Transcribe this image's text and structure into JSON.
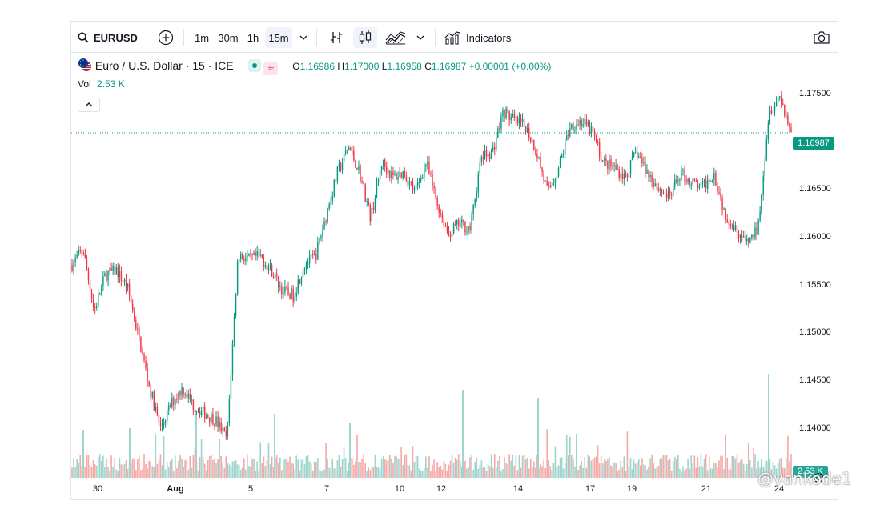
{
  "toolbar": {
    "symbol": "EURUSD",
    "intervals": [
      "1m",
      "30m",
      "1h",
      "15m"
    ],
    "active_interval": "15m",
    "indicators_label": "Indicators"
  },
  "legend": {
    "title": "Euro / U.S. Dollar · 15 · ICE",
    "open_label": "O",
    "open": "1.16986",
    "high_label": "H",
    "high": "1.17000",
    "low_label": "L",
    "low": "1.16958",
    "close_label": "C",
    "close": "1.16987",
    "change": "+0.00001 (+0.00%)",
    "vol_label": "Vol",
    "vol_value": "2.53 K"
  },
  "axes": {
    "price_ticks": [
      "1.17500",
      "1.16500",
      "1.16000",
      "1.15500",
      "1.15000",
      "1.14500",
      "1.14000"
    ],
    "current_price": "1.16987",
    "current_volume": "2.53 K",
    "date_ticks": [
      "30",
      "Aug",
      "5",
      "7",
      "10",
      "12",
      "14",
      "17",
      "19",
      "21",
      "24"
    ]
  },
  "watermark": "@vankode1",
  "colors": {
    "up": "#089981",
    "down": "#f23645",
    "up_vol": "#9fd5cd",
    "down_vol": "#f7a9a7"
  },
  "chart_data": {
    "type": "candlestick",
    "title": "Euro / U.S. Dollar · 15 · ICE",
    "interval": "15m",
    "ylim": [
      1.1362,
      1.1776
    ],
    "close_path": [
      {
        "x": "Jul 29",
        "y": 1.157
      },
      {
        "x": "Jul 29",
        "y": 1.1585
      },
      {
        "x": "Jul 29",
        "y": 1.1525
      },
      {
        "x": "Jul 29",
        "y": 1.156
      },
      {
        "x": "Jul 30",
        "y": 1.1565
      },
      {
        "x": "Jul 30",
        "y": 1.1548
      },
      {
        "x": "Jul 30",
        "y": 1.15
      },
      {
        "x": "Jul 30",
        "y": 1.145
      },
      {
        "x": "Jul 30",
        "y": 1.141
      },
      {
        "x": "Jul 31",
        "y": 1.1435
      },
      {
        "x": "Jul 31",
        "y": 1.145
      },
      {
        "x": "Jul 31",
        "y": 1.1432
      },
      {
        "x": "Jul 31",
        "y": 1.1425
      },
      {
        "x": "Aug 1",
        "y": 1.1418
      },
      {
        "x": "Aug 1",
        "y": 1.14
      },
      {
        "x": "Aug 1",
        "y": 1.158
      },
      {
        "x": "Aug 4",
        "y": 1.1575
      },
      {
        "x": "Aug 4",
        "y": 1.1578
      },
      {
        "x": "Aug 5",
        "y": 1.1565
      },
      {
        "x": "Aug 5",
        "y": 1.1545
      },
      {
        "x": "Aug 5",
        "y": 1.154
      },
      {
        "x": "Aug 6",
        "y": 1.157
      },
      {
        "x": "Aug 6",
        "y": 1.1578
      },
      {
        "x": "Aug 6",
        "y": 1.162
      },
      {
        "x": "Aug 7",
        "y": 1.166
      },
      {
        "x": "Aug 7",
        "y": 1.1685
      },
      {
        "x": "Aug 7",
        "y": 1.166
      },
      {
        "x": "Aug 7",
        "y": 1.1615
      },
      {
        "x": "Aug 8",
        "y": 1.167
      },
      {
        "x": "Aug 8",
        "y": 1.1655
      },
      {
        "x": "Aug 8",
        "y": 1.166
      },
      {
        "x": "Aug 8",
        "y": 1.164
      },
      {
        "x": "Aug 11",
        "y": 1.167
      },
      {
        "x": "Aug 11",
        "y": 1.163
      },
      {
        "x": "Aug 11",
        "y": 1.16
      },
      {
        "x": "Aug 12",
        "y": 1.161
      },
      {
        "x": "Aug 12",
        "y": 1.1605
      },
      {
        "x": "Aug 12",
        "y": 1.1675
      },
      {
        "x": "Aug 13",
        "y": 1.168
      },
      {
        "x": "Aug 13",
        "y": 1.172
      },
      {
        "x": "Aug 13",
        "y": 1.171
      },
      {
        "x": "Aug 14",
        "y": 1.1705
      },
      {
        "x": "Aug 14",
        "y": 1.168
      },
      {
        "x": "Aug 14",
        "y": 1.164
      },
      {
        "x": "Aug 15",
        "y": 1.1665
      },
      {
        "x": "Aug 15",
        "y": 1.1705
      },
      {
        "x": "Aug 15",
        "y": 1.171
      },
      {
        "x": "Aug 18",
        "y": 1.17
      },
      {
        "x": "Aug 18",
        "y": 1.167
      },
      {
        "x": "Aug 18",
        "y": 1.1665
      },
      {
        "x": "Aug 19",
        "y": 1.1655
      },
      {
        "x": "Aug 19",
        "y": 1.168
      },
      {
        "x": "Aug 19",
        "y": 1.166
      },
      {
        "x": "Aug 20",
        "y": 1.1645
      },
      {
        "x": "Aug 20",
        "y": 1.1635
      },
      {
        "x": "Aug 20",
        "y": 1.166
      },
      {
        "x": "Aug 21",
        "y": 1.165
      },
      {
        "x": "Aug 21",
        "y": 1.1645
      },
      {
        "x": "Aug 21",
        "y": 1.166
      },
      {
        "x": "Aug 22",
        "y": 1.162
      },
      {
        "x": "Aug 22",
        "y": 1.1605
      },
      {
        "x": "Aug 22",
        "y": 1.159
      },
      {
        "x": "Aug 22",
        "y": 1.1605
      },
      {
        "x": "Aug 22",
        "y": 1.172
      },
      {
        "x": "Aug 24",
        "y": 1.1735
      },
      {
        "x": "Aug 24",
        "y": 1.1699
      }
    ],
    "volume_spikes": [
      "Jul 29",
      "Jul 31",
      "Aug 1",
      "Aug 5",
      "Aug 7",
      "Aug 12",
      "Aug 14",
      "Aug 17",
      "Aug 22"
    ]
  }
}
